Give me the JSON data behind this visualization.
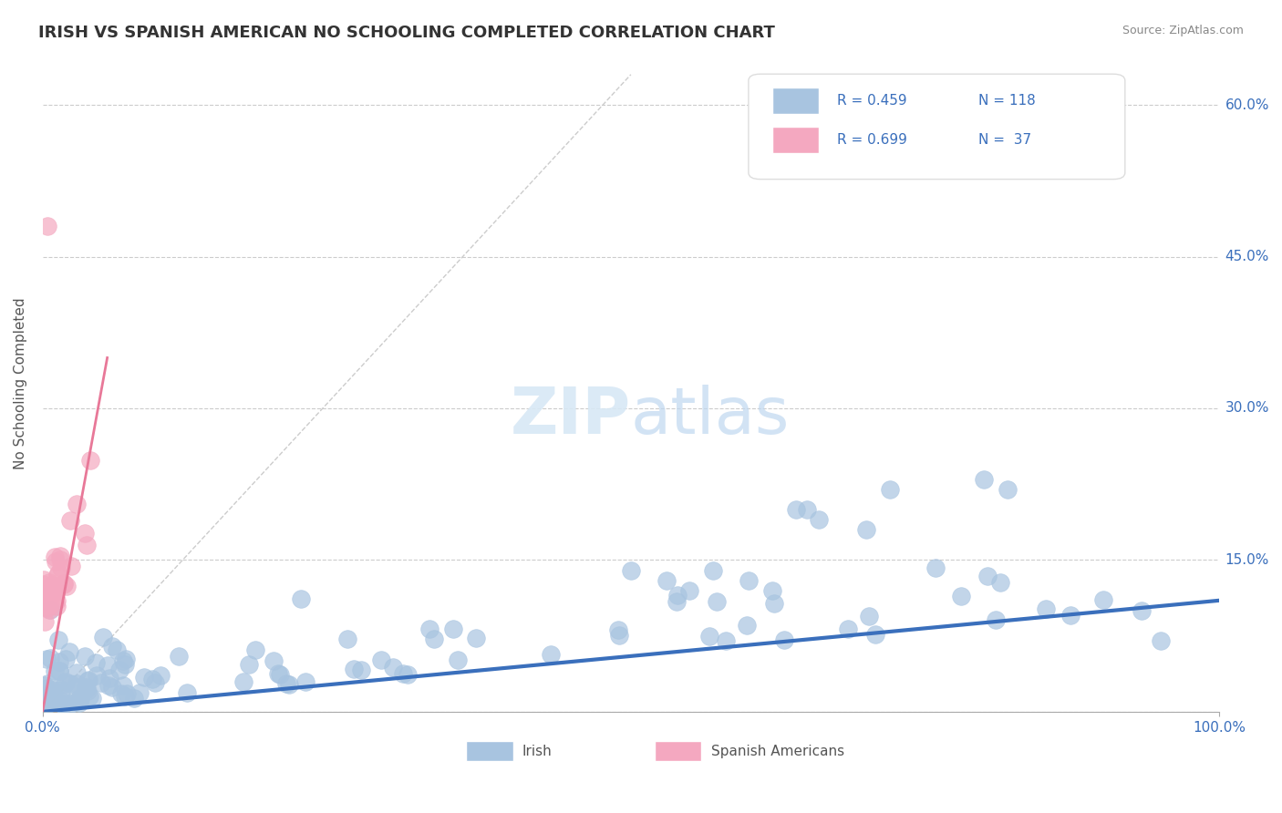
{
  "title": "IRISH VS SPANISH AMERICAN NO SCHOOLING COMPLETED CORRELATION CHART",
  "source": "Source: ZipAtlas.com",
  "ylabel": "No Schooling Completed",
  "irish_color": "#a8c4e0",
  "spanish_color": "#f4a8c0",
  "irish_line_color": "#3a6fbc",
  "spanish_line_color": "#e87898",
  "ref_line_color": "#cccccc",
  "background_color": "#ffffff",
  "legend_irish_R": "R = 0.459",
  "legend_irish_N": "N = 118",
  "legend_spanish_R": "R = 0.699",
  "legend_spanish_N": "N =  37",
  "ytick_vals": [
    0.0,
    0.15,
    0.3,
    0.45,
    0.6
  ],
  "ytick_labels": [
    "",
    "15.0%",
    "30.0%",
    "45.0%",
    "60.0%"
  ],
  "xlim": [
    0.0,
    1.0
  ],
  "ylim": [
    0.0,
    0.65
  ]
}
